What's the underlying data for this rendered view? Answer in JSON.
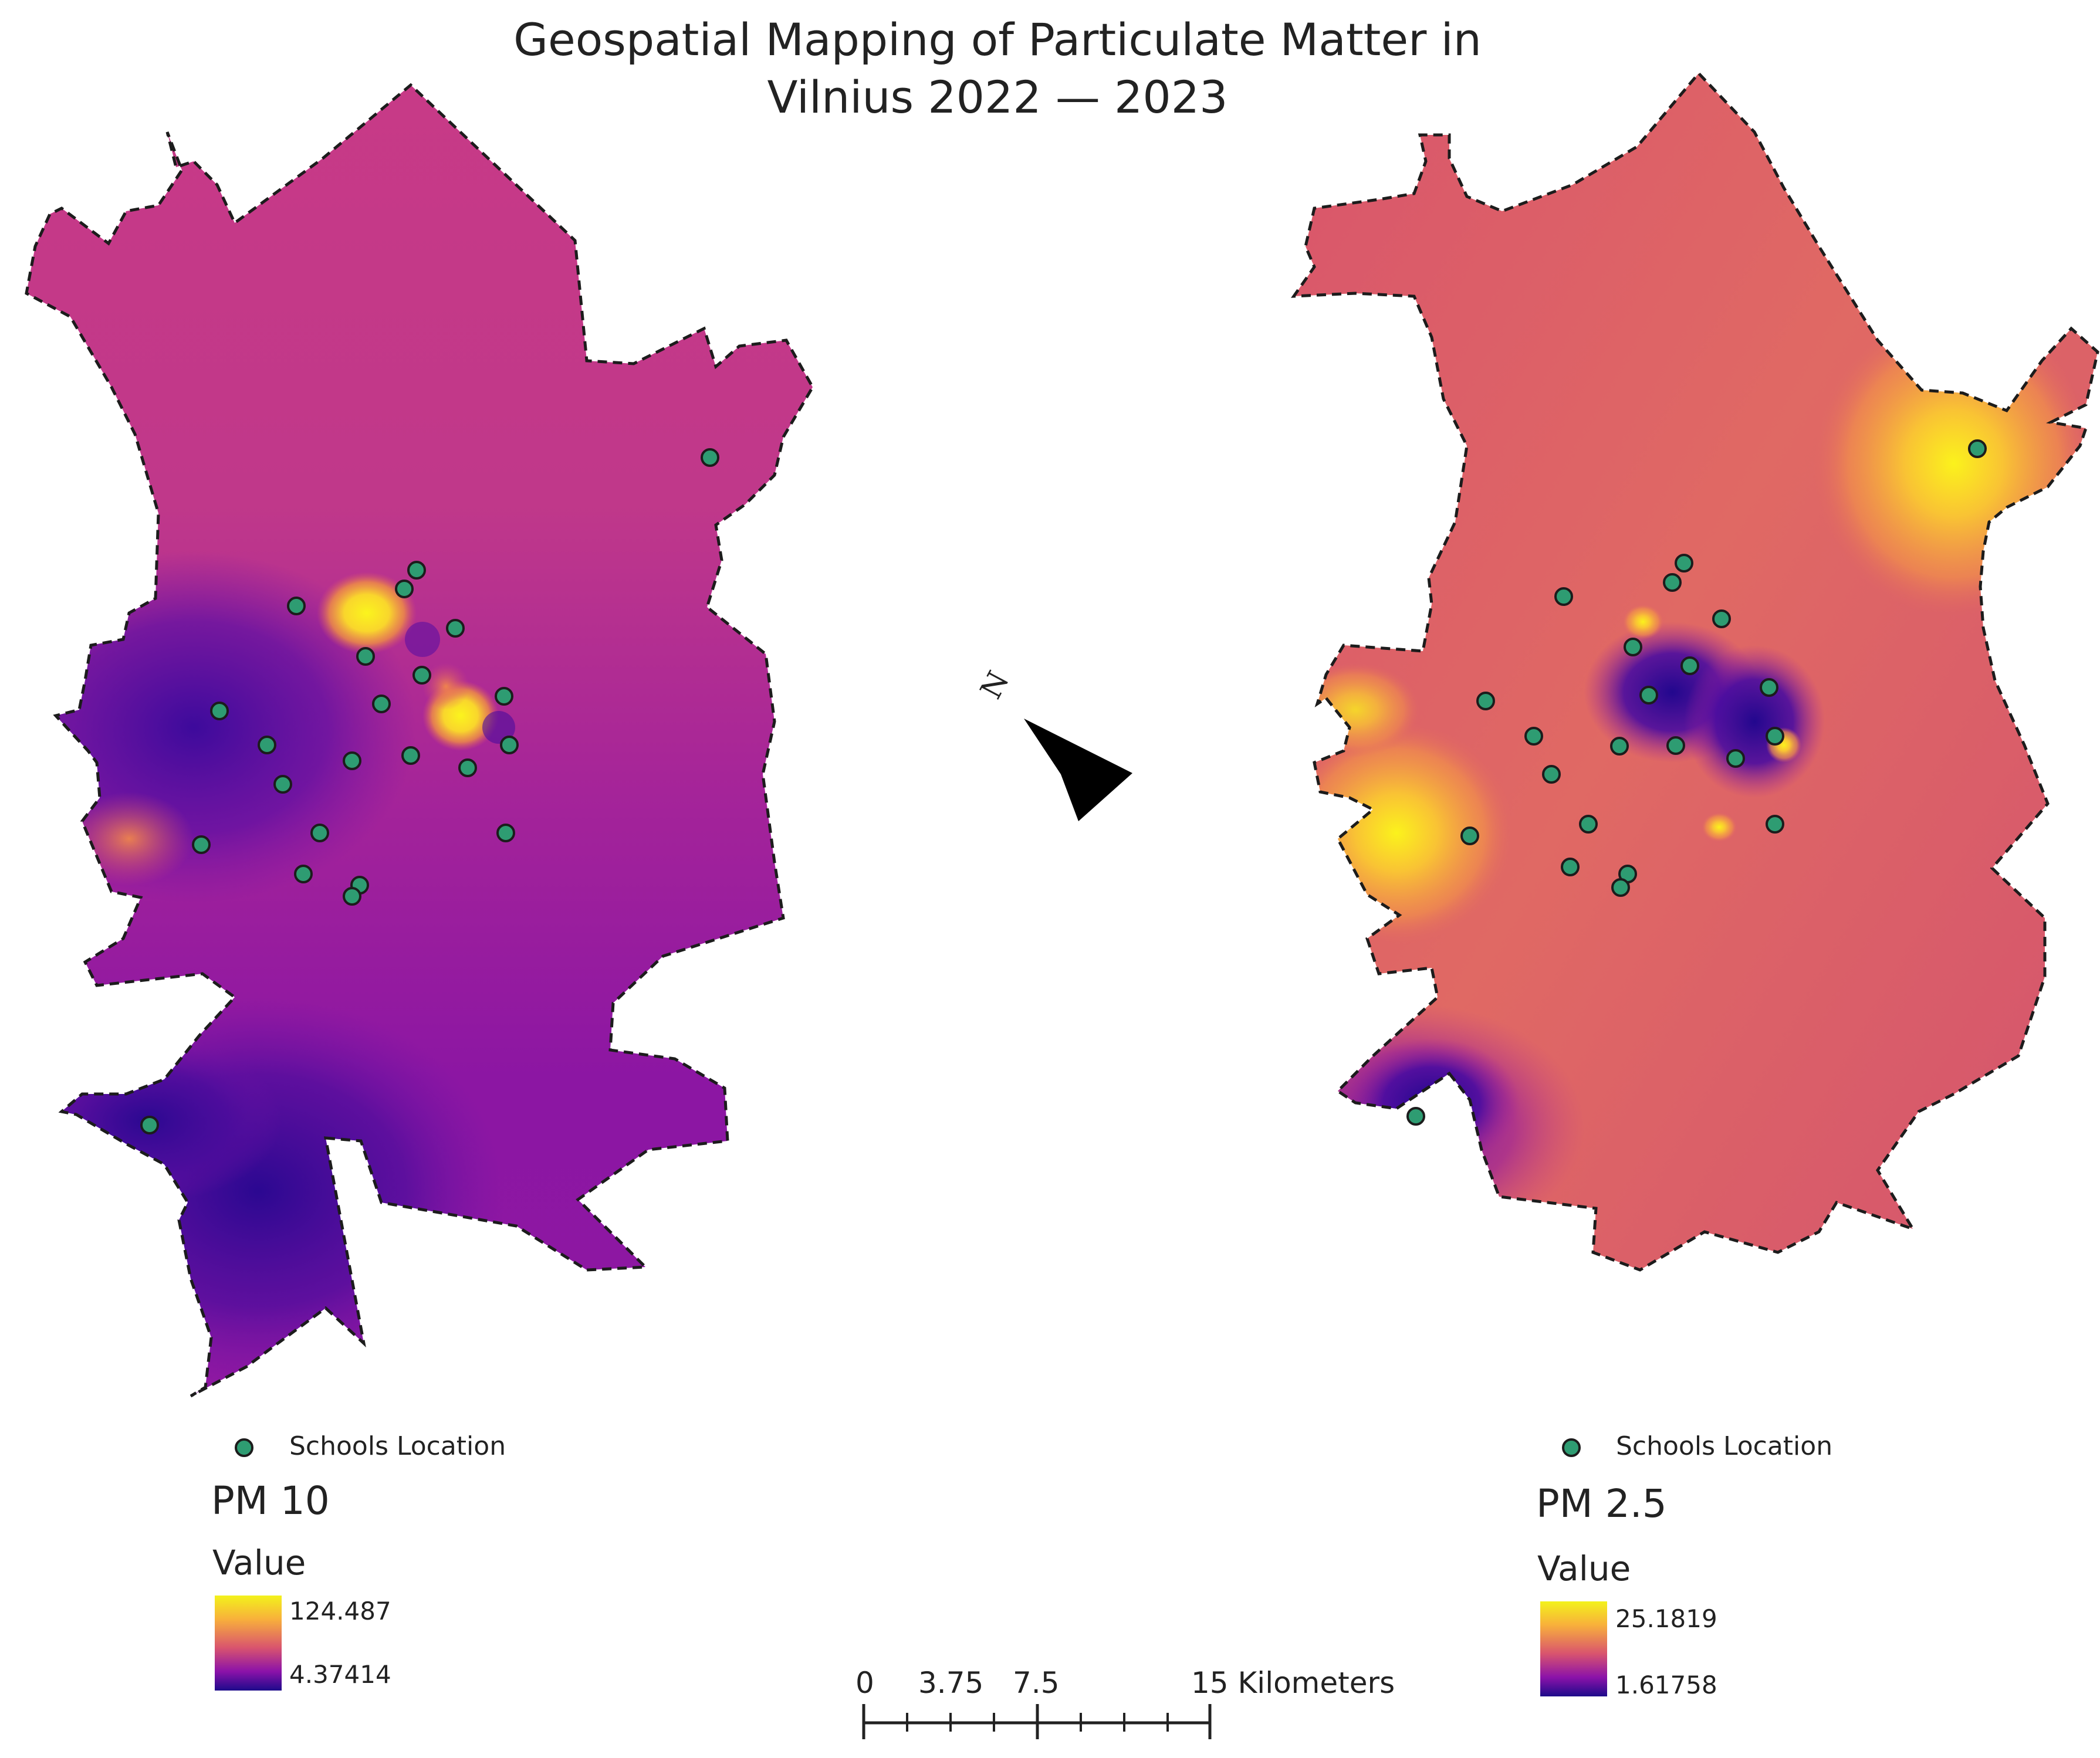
{
  "title": {
    "line1": "Geospatial Mapping of Particulate Matter in",
    "line2": "Vilnius 2022 — 2023"
  },
  "north_arrow": {
    "label": "N"
  },
  "maps": [
    {
      "id": "pm10",
      "legend": {
        "points_label": "Schools Location",
        "layer_title": "PM 10",
        "value_heading": "Value",
        "max": "124.487",
        "min": "4.37414"
      }
    },
    {
      "id": "pm25",
      "legend": {
        "points_label": "Schools Location",
        "layer_title": "PM 2.5",
        "value_heading": "Value",
        "max": "25.1819",
        "min": "1.61758"
      }
    }
  ],
  "scale_bar": {
    "labels": [
      "0",
      "3.75",
      "7.5",
      "15 Kilometers"
    ]
  },
  "colors": {
    "ramp_high": "#f3f21b",
    "ramp_mid_high": "#f8b03b",
    "ramp_mid": "#d9546e",
    "ramp_mid_low": "#8b12a9",
    "ramp_low": "#1d0a8b",
    "school_point": "#2e9c72",
    "boundary": "#1c1c1c"
  }
}
